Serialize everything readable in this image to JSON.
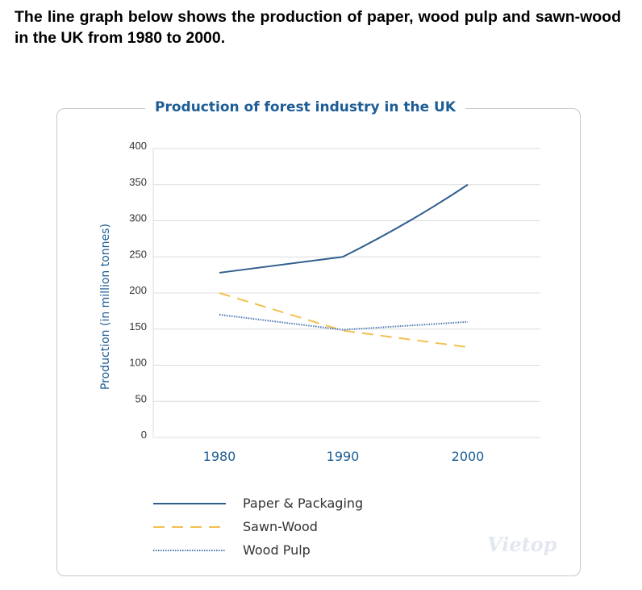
{
  "prompt": "The line graph below shows the production of paper, wood pulp and sawn-wood in the UK from 1980 to 2000.",
  "watermark": "Vietop",
  "chart_data": {
    "type": "line",
    "title": "Production of forest industry in the UK",
    "xlabel": "",
    "ylabel": "Production (in million tonnes)",
    "categories": [
      "1980",
      "1990",
      "2000"
    ],
    "ylim": [
      0,
      400
    ],
    "yticks": [
      0,
      50,
      100,
      150,
      200,
      250,
      300,
      350,
      400
    ],
    "grid": true,
    "legend_position": "bottom-left",
    "series": [
      {
        "name": "Paper & Packaging",
        "values": [
          228,
          250,
          350
        ],
        "color": "#305f8e",
        "style": "solid"
      },
      {
        "name": "Sawn-Wood",
        "values": [
          200,
          148,
          125
        ],
        "color": "#f2c14e",
        "style": "dashed"
      },
      {
        "name": "Wood Pulp",
        "values": [
          170,
          149,
          160
        ],
        "color": "#4a77b4",
        "style": "dotted"
      }
    ],
    "axis_label_color": "#1d5d95"
  }
}
